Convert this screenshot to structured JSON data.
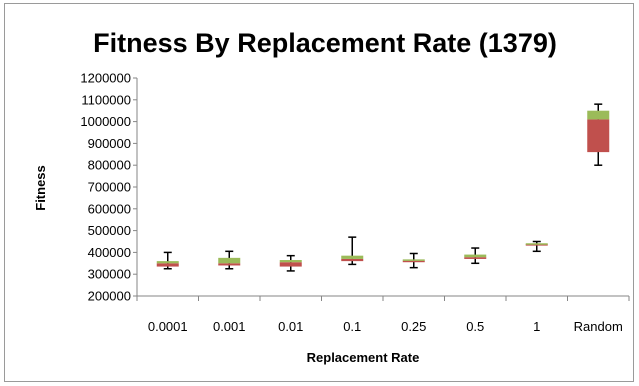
{
  "chart_data": {
    "type": "boxplot",
    "title": "Fitness By Replacement Rate (1379)",
    "xlabel": "Replacement Rate",
    "ylabel": "Fitness",
    "ylim": [
      200000,
      1200000
    ],
    "yticks": [
      200000,
      300000,
      400000,
      500000,
      600000,
      700000,
      800000,
      900000,
      1000000,
      1100000,
      1200000
    ],
    "ytick_labels": [
      "200000",
      "300000",
      "400000",
      "500000",
      "600000",
      "700000",
      "800000",
      "900000",
      "1000000",
      "1100000",
      "1200000"
    ],
    "grid": false,
    "colors": {
      "lower_box": "#c0504d",
      "upper_box": "#9bbb59",
      "whisker": "#000000",
      "axis": "#868686"
    },
    "categories": [
      "0.0001",
      "0.001",
      "0.01",
      "0.1",
      "0.25",
      "0.5",
      "1",
      "Random"
    ],
    "boxes": [
      {
        "min": 325000,
        "q1": 335000,
        "median": 350000,
        "q3": 360000,
        "max": 400000
      },
      {
        "min": 325000,
        "q1": 340000,
        "median": 350000,
        "q3": 375000,
        "max": 405000
      },
      {
        "min": 315000,
        "q1": 335000,
        "median": 355000,
        "q3": 365000,
        "max": 385000
      },
      {
        "min": 345000,
        "q1": 360000,
        "median": 370000,
        "q3": 385000,
        "max": 470000
      },
      {
        "min": 330000,
        "q1": 355000,
        "median": 362000,
        "q3": 368000,
        "max": 395000
      },
      {
        "min": 350000,
        "q1": 370000,
        "median": 378000,
        "q3": 390000,
        "max": 420000
      },
      {
        "min": 405000,
        "q1": 434000,
        "median": 438000,
        "q3": 442000,
        "max": 450000
      },
      {
        "min": 800000,
        "q1": 860000,
        "median": 1010000,
        "q3": 1050000,
        "max": 1080000
      }
    ]
  }
}
